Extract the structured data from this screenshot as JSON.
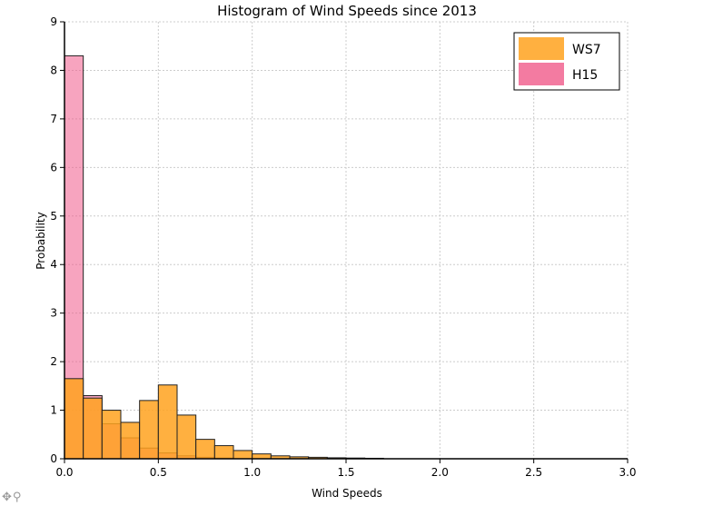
{
  "chart_data": {
    "type": "bar",
    "title": "Histogram of Wind Speeds since 2013",
    "xlabel": "Wind Speeds",
    "ylabel": "Probability",
    "xlim": [
      0.0,
      3.0
    ],
    "ylim": [
      0,
      9
    ],
    "x_ticks": [
      "0.0",
      "0.5",
      "1.0",
      "1.5",
      "2.0",
      "2.5",
      "3.0"
    ],
    "y_ticks": [
      "0",
      "1",
      "2",
      "3",
      "4",
      "5",
      "6",
      "7",
      "8",
      "9"
    ],
    "grid": true,
    "legend_position": "top-right",
    "series": [
      {
        "name": "WS7",
        "color": "#ffa21f",
        "bins": [
          {
            "x0": 0.0,
            "x1": 0.1,
            "y": 1.65
          },
          {
            "x0": 0.1,
            "x1": 0.2,
            "y": 1.25
          },
          {
            "x0": 0.2,
            "x1": 0.3,
            "y": 1.0
          },
          {
            "x0": 0.3,
            "x1": 0.4,
            "y": 0.75
          },
          {
            "x0": 0.4,
            "x1": 0.5,
            "y": 1.2
          },
          {
            "x0": 0.5,
            "x1": 0.6,
            "y": 1.52
          },
          {
            "x0": 0.6,
            "x1": 0.7,
            "y": 0.9
          },
          {
            "x0": 0.7,
            "x1": 0.8,
            "y": 0.4
          },
          {
            "x0": 0.8,
            "x1": 0.9,
            "y": 0.27
          },
          {
            "x0": 0.9,
            "x1": 1.0,
            "y": 0.17
          },
          {
            "x0": 1.0,
            "x1": 1.1,
            "y": 0.1
          },
          {
            "x0": 1.1,
            "x1": 1.2,
            "y": 0.06
          },
          {
            "x0": 1.2,
            "x1": 1.3,
            "y": 0.04
          },
          {
            "x0": 1.3,
            "x1": 1.4,
            "y": 0.03
          },
          {
            "x0": 1.4,
            "x1": 1.5,
            "y": 0.02
          },
          {
            "x0": 1.5,
            "x1": 1.6,
            "y": 0.015
          },
          {
            "x0": 1.6,
            "x1": 1.7,
            "y": 0.01
          }
        ]
      },
      {
        "name": "H15",
        "color": "#f05a8a",
        "bins": [
          {
            "x0": 0.0,
            "x1": 0.1,
            "y": 8.3
          },
          {
            "x0": 0.1,
            "x1": 0.2,
            "y": 1.3
          },
          {
            "x0": 0.2,
            "x1": 0.3,
            "y": 0.72
          },
          {
            "x0": 0.3,
            "x1": 0.4,
            "y": 0.43
          },
          {
            "x0": 0.4,
            "x1": 0.5,
            "y": 0.22
          },
          {
            "x0": 0.5,
            "x1": 0.6,
            "y": 0.12
          },
          {
            "x0": 0.6,
            "x1": 0.7,
            "y": 0.06
          },
          {
            "x0": 0.7,
            "x1": 0.8,
            "y": 0.03
          },
          {
            "x0": 0.8,
            "x1": 0.9,
            "y": 0.015
          }
        ]
      }
    ]
  },
  "toolbar": {
    "move_icon": "✥",
    "zoom_icon": "⚲"
  }
}
